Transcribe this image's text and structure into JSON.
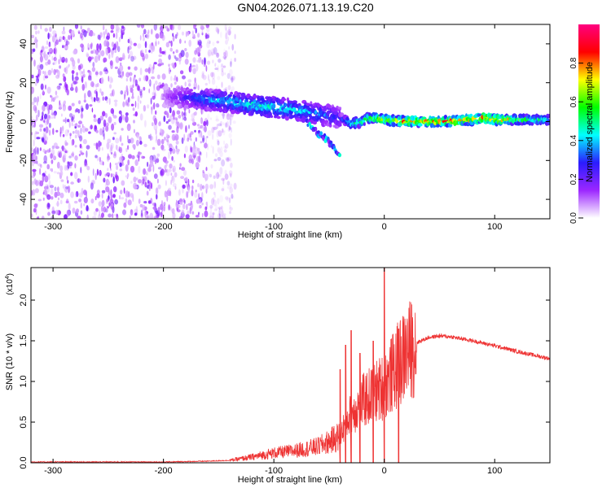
{
  "title": "GN04.2026.071.13.19.C20",
  "chart_data": [
    {
      "type": "heatmap",
      "xlabel": "Height of straight line (km)",
      "ylabel": "Frequency (Hz)",
      "xlim": [
        -320,
        150
      ],
      "ylim": [
        -50,
        50
      ],
      "xticks": [
        -300,
        -200,
        -100,
        0,
        100
      ],
      "xtick_labels": [
        "-300",
        "-200",
        "-100",
        "0",
        "100"
      ],
      "yticks": [
        -40,
        -20,
        0,
        20,
        40
      ],
      "ytick_labels": [
        "-40",
        "-20",
        "0",
        "20",
        "40"
      ],
      "noise_region_x": [
        -320,
        -140
      ],
      "ridge": {
        "x": [
          -200,
          -170,
          -140,
          -110,
          -80,
          -60,
          -40,
          -30,
          -20,
          -15,
          0,
          20,
          50,
          80,
          90,
          100,
          130,
          150
        ],
        "y": [
          13,
          12,
          10,
          8,
          6,
          4,
          2,
          -1,
          0,
          2,
          1,
          0,
          0,
          1,
          2,
          1,
          1,
          1
        ],
        "amplitude": [
          0.1,
          0.35,
          0.45,
          0.5,
          0.45,
          0.4,
          0.3,
          0.55,
          0.6,
          0.65,
          0.8,
          0.9,
          0.88,
          0.9,
          0.95,
          0.88,
          0.6,
          0.5
        ]
      },
      "branch": {
        "x": [
          -70,
          -60,
          -50,
          -45,
          -40
        ],
        "y": [
          0,
          -6,
          -10,
          -14,
          -16
        ]
      },
      "colorbar": {
        "label": "Normalized spectral amplitude",
        "range": [
          0,
          1
        ],
        "ticks": [
          0.0,
          0.2,
          0.4,
          0.6,
          0.8
        ],
        "tick_labels": [
          "0.0",
          "0.2",
          "0.4",
          "0.6",
          "0.8"
        ],
        "colors": [
          "#ffffff",
          "#9c27ff",
          "#2b1cff",
          "#00ffff",
          "#00ff00",
          "#ffff00",
          "#ff0000",
          "#ff0080"
        ]
      }
    },
    {
      "type": "line",
      "xlabel": "Height of straight line (km)",
      "ylabel": "SNR (10 * v/v)",
      "exponent_label": "(x10",
      "exponent_power": "4",
      "exponent_close": ")",
      "xlim": [
        -320,
        150
      ],
      "ylim": [
        0,
        2.4
      ],
      "xticks": [
        -300,
        -200,
        -100,
        0,
        100
      ],
      "xtick_labels": [
        "-300",
        "-200",
        "-100",
        "0",
        "100"
      ],
      "yticks": [
        0.0,
        0.5,
        1.0,
        1.5,
        2.0
      ],
      "ytick_labels": [
        "0.0",
        "0.5",
        "1.0",
        "1.5",
        "2.0"
      ],
      "color": "#ee3333",
      "envelope": {
        "x": [
          -320,
          -200,
          -160,
          -140,
          -120,
          -100,
          -80,
          -60,
          -50,
          -40,
          -35,
          -30,
          -20,
          -10,
          0,
          10,
          20,
          30,
          40,
          50,
          60,
          80,
          100,
          120,
          150
        ],
        "y": [
          0.01,
          0.01,
          0.02,
          0.03,
          0.07,
          0.12,
          0.15,
          0.2,
          0.26,
          0.33,
          0.5,
          0.6,
          0.75,
          0.85,
          0.95,
          1.15,
          1.35,
          1.48,
          1.54,
          1.56,
          1.55,
          1.5,
          1.44,
          1.37,
          1.28
        ]
      },
      "spikes": [
        {
          "x": -40,
          "y": 1.15
        },
        {
          "x": -35,
          "y": 1.45
        },
        {
          "x": -30,
          "y": 1.63
        },
        {
          "x": -22,
          "y": 1.35
        },
        {
          "x": -10,
          "y": 1.5
        },
        {
          "x": 0,
          "y": 2.4
        },
        {
          "x": 13,
          "y": 1.65
        }
      ]
    }
  ]
}
